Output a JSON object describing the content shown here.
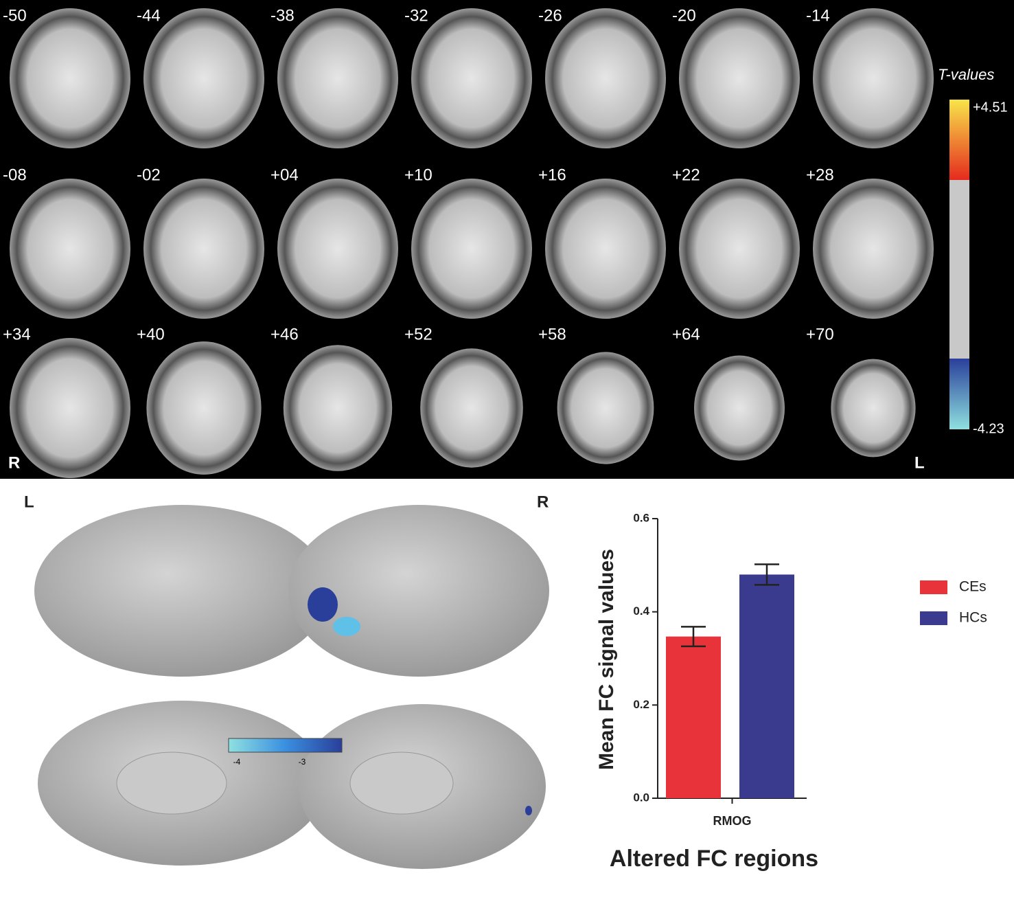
{
  "brain_slices": {
    "slice_labels": [
      "-50",
      "-44",
      "-38",
      "-32",
      "-26",
      "-20",
      "-14",
      "-08",
      "-02",
      "+04",
      "+10",
      "+16",
      "+22",
      "+28",
      "+34",
      "+40",
      "+46",
      "+52",
      "+58",
      "+64",
      "+70"
    ],
    "colorbar_title": "T-values",
    "colorbar_max": "+4.51",
    "colorbar_min": "-4.23",
    "left_label": "R",
    "right_label": "L"
  },
  "surface": {
    "left_label": "L",
    "right_label": "R",
    "colorbar_ticks": [
      "-4",
      "-3"
    ]
  },
  "chart_data": {
    "type": "bar",
    "categories": [
      "RMOG"
    ],
    "series": [
      {
        "name": "CEs",
        "color": "#e8333a",
        "values": [
          0.347
        ],
        "errors": [
          0.021
        ]
      },
      {
        "name": "HCs",
        "color": "#3a3a8f",
        "values": [
          0.48
        ],
        "errors": [
          0.022
        ]
      }
    ],
    "ylim": [
      0,
      0.6
    ],
    "yticks": [
      {
        "value": 0,
        "label": "0.0"
      },
      0.2,
      0.4,
      0.6
    ],
    "y_label": "Mean FC signal values",
    "x_label": "Altered FC regions",
    "legend": "right"
  }
}
